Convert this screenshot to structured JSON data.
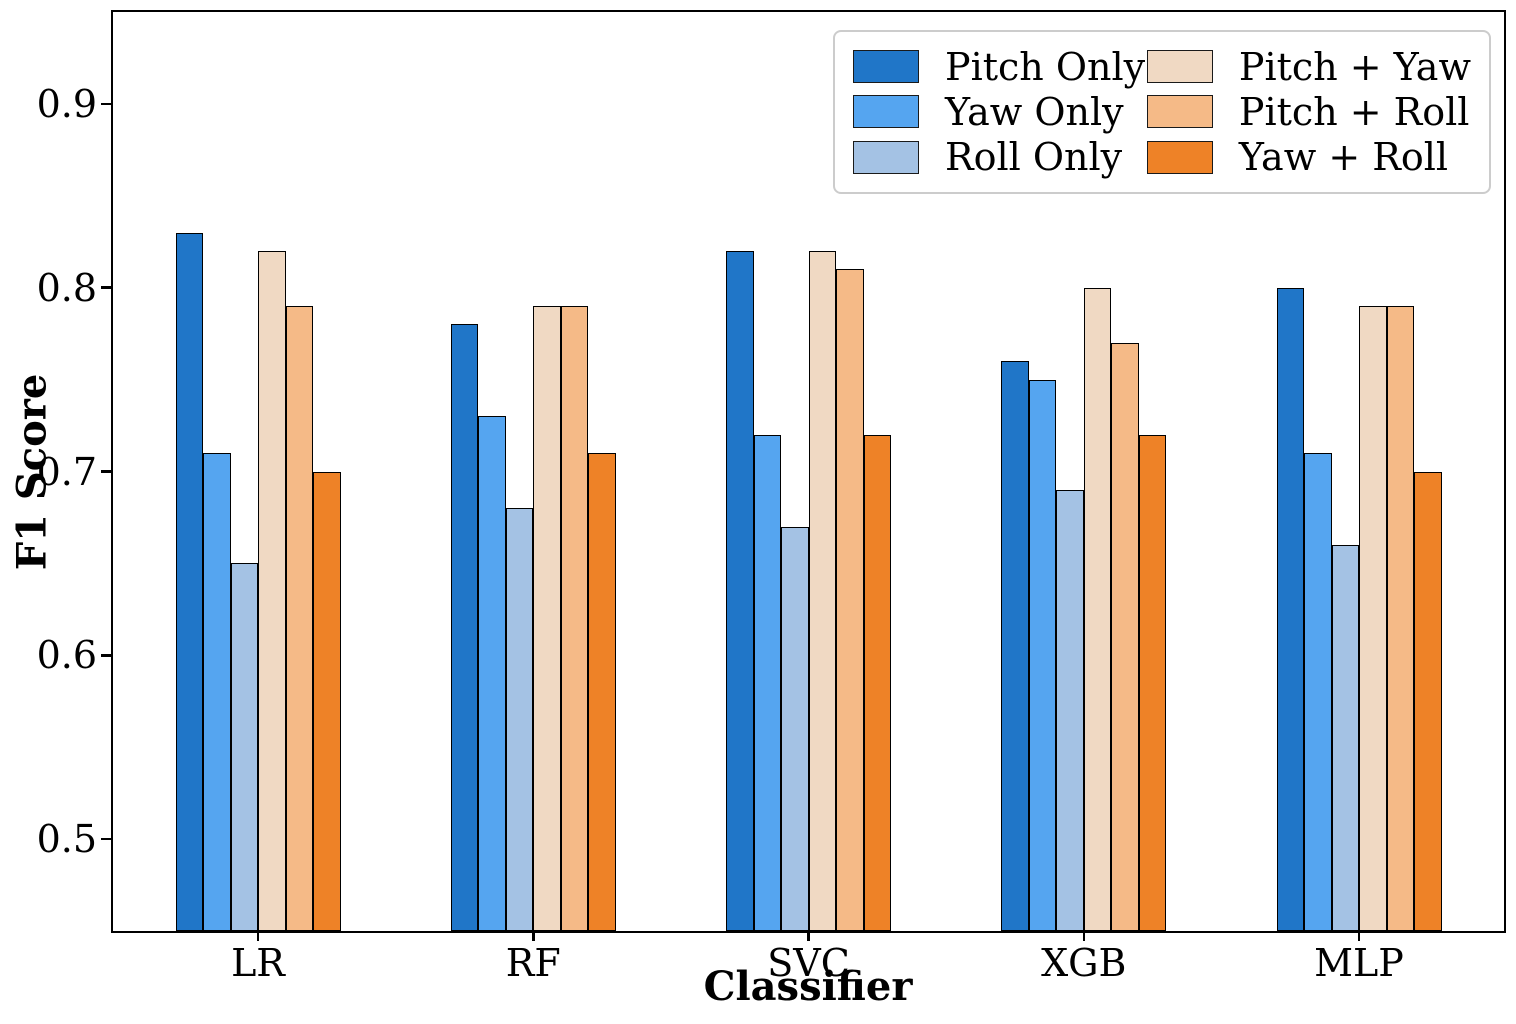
{
  "chart_data": {
    "type": "bar",
    "title": "",
    "xlabel": "Classifier",
    "ylabel": "F1 Score",
    "categories": [
      "LR",
      "RF",
      "SVC",
      "XGB",
      "MLP"
    ],
    "series": [
      {
        "name": "Pitch Only",
        "color": "#2076c8",
        "values": [
          0.83,
          0.78,
          0.82,
          0.76,
          0.8
        ]
      },
      {
        "name": "Yaw Only",
        "color": "#55a5f0",
        "values": [
          0.71,
          0.73,
          0.72,
          0.75,
          0.71
        ]
      },
      {
        "name": "Roll Only",
        "color": "#a4c2e4",
        "values": [
          0.65,
          0.68,
          0.67,
          0.69,
          0.66
        ]
      },
      {
        "name": "Pitch + Yaw",
        "color": "#f0d9c3",
        "values": [
          0.82,
          0.79,
          0.82,
          0.8,
          0.79
        ]
      },
      {
        "name": "Pitch + Roll",
        "color": "#f5ba87",
        "values": [
          0.79,
          0.79,
          0.81,
          0.77,
          0.79
        ]
      },
      {
        "name": "Yaw + Roll",
        "color": "#ee8227",
        "values": [
          0.7,
          0.71,
          0.72,
          0.72,
          0.7
        ]
      }
    ],
    "ylim": [
      0.45,
      0.95
    ],
    "yticks": [
      0.5,
      0.6,
      0.7,
      0.8,
      0.9
    ],
    "grid": false,
    "legend_position": "upper right",
    "legend_columns": 2,
    "bar_edge_color": "#000000",
    "legend_border_color": "#cccccc"
  }
}
